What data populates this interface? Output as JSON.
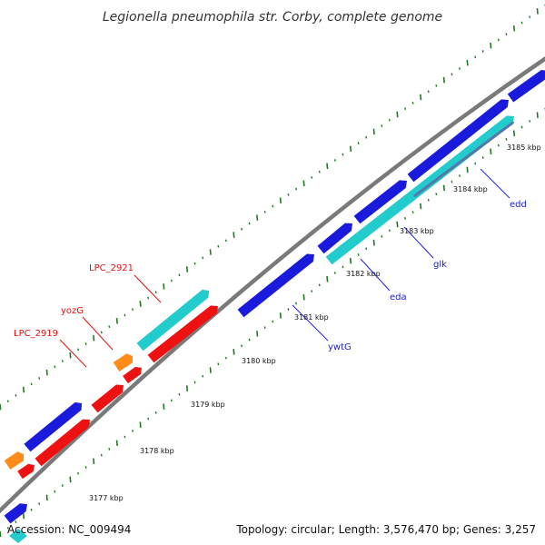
{
  "title": "Legionella pneumophila str. Corby, complete genome",
  "footer": {
    "accession": "Accession: NC_009494",
    "summary": "Topology: circular; Length: 3,576,470 bp; Genes: 3,257"
  },
  "colors": {
    "backbone": "#7a7a7a",
    "tick": "#1f7a1f",
    "label_forward": "#2222cc",
    "label_reverse": "#dd1111",
    "gene_blue": "#1a1adc",
    "gene_cyan": "#22cccc",
    "gene_red": "#ee1111",
    "gene_orange": "#ff8c1a",
    "gene_steel": "#5577aa"
  },
  "ticks": [
    "3177 kbp",
    "3178 kbp",
    "3179 kbp",
    "3180 kbp",
    "3181 kbp",
    "3182 kbp",
    "3183 kbp",
    "3184 kbp",
    "3185 kbp"
  ],
  "gene_labels": [
    {
      "text": "LPC_2921",
      "strand": "reverse"
    },
    {
      "text": "yozG",
      "strand": "reverse"
    },
    {
      "text": "LPC_2919",
      "strand": "reverse"
    },
    {
      "text": "ywtG",
      "strand": "forward"
    },
    {
      "text": "eda",
      "strand": "forward"
    },
    {
      "text": "glk",
      "strand": "forward"
    },
    {
      "text": "edd",
      "strand": "forward"
    }
  ],
  "features": [
    {
      "color": "gene_blue",
      "ring": "forward"
    },
    {
      "color": "gene_blue",
      "ring": "forward"
    },
    {
      "color": "gene_blue",
      "ring": "forward"
    },
    {
      "color": "gene_blue",
      "ring": "forward"
    },
    {
      "color": "gene_blue",
      "ring": "forward"
    },
    {
      "color": "gene_cyan",
      "ring": "forward"
    },
    {
      "color": "gene_steel",
      "ring": "forward"
    },
    {
      "color": "gene_blue",
      "ring": "forward"
    },
    {
      "color": "gene_cyan",
      "ring": "reverse"
    },
    {
      "color": "gene_red",
      "ring": "reverse"
    },
    {
      "color": "gene_orange",
      "ring": "reverse"
    },
    {
      "color": "gene_red",
      "ring": "reverse"
    },
    {
      "color": "gene_red",
      "ring": "reverse"
    },
    {
      "color": "gene_blue",
      "ring": "reverse"
    },
    {
      "color": "gene_red",
      "ring": "reverse"
    },
    {
      "color": "gene_orange",
      "ring": "reverse"
    },
    {
      "color": "gene_red",
      "ring": "reverse"
    },
    {
      "color": "gene_blue",
      "ring": "reverse"
    },
    {
      "color": "gene_cyan",
      "ring": "reverse"
    }
  ]
}
